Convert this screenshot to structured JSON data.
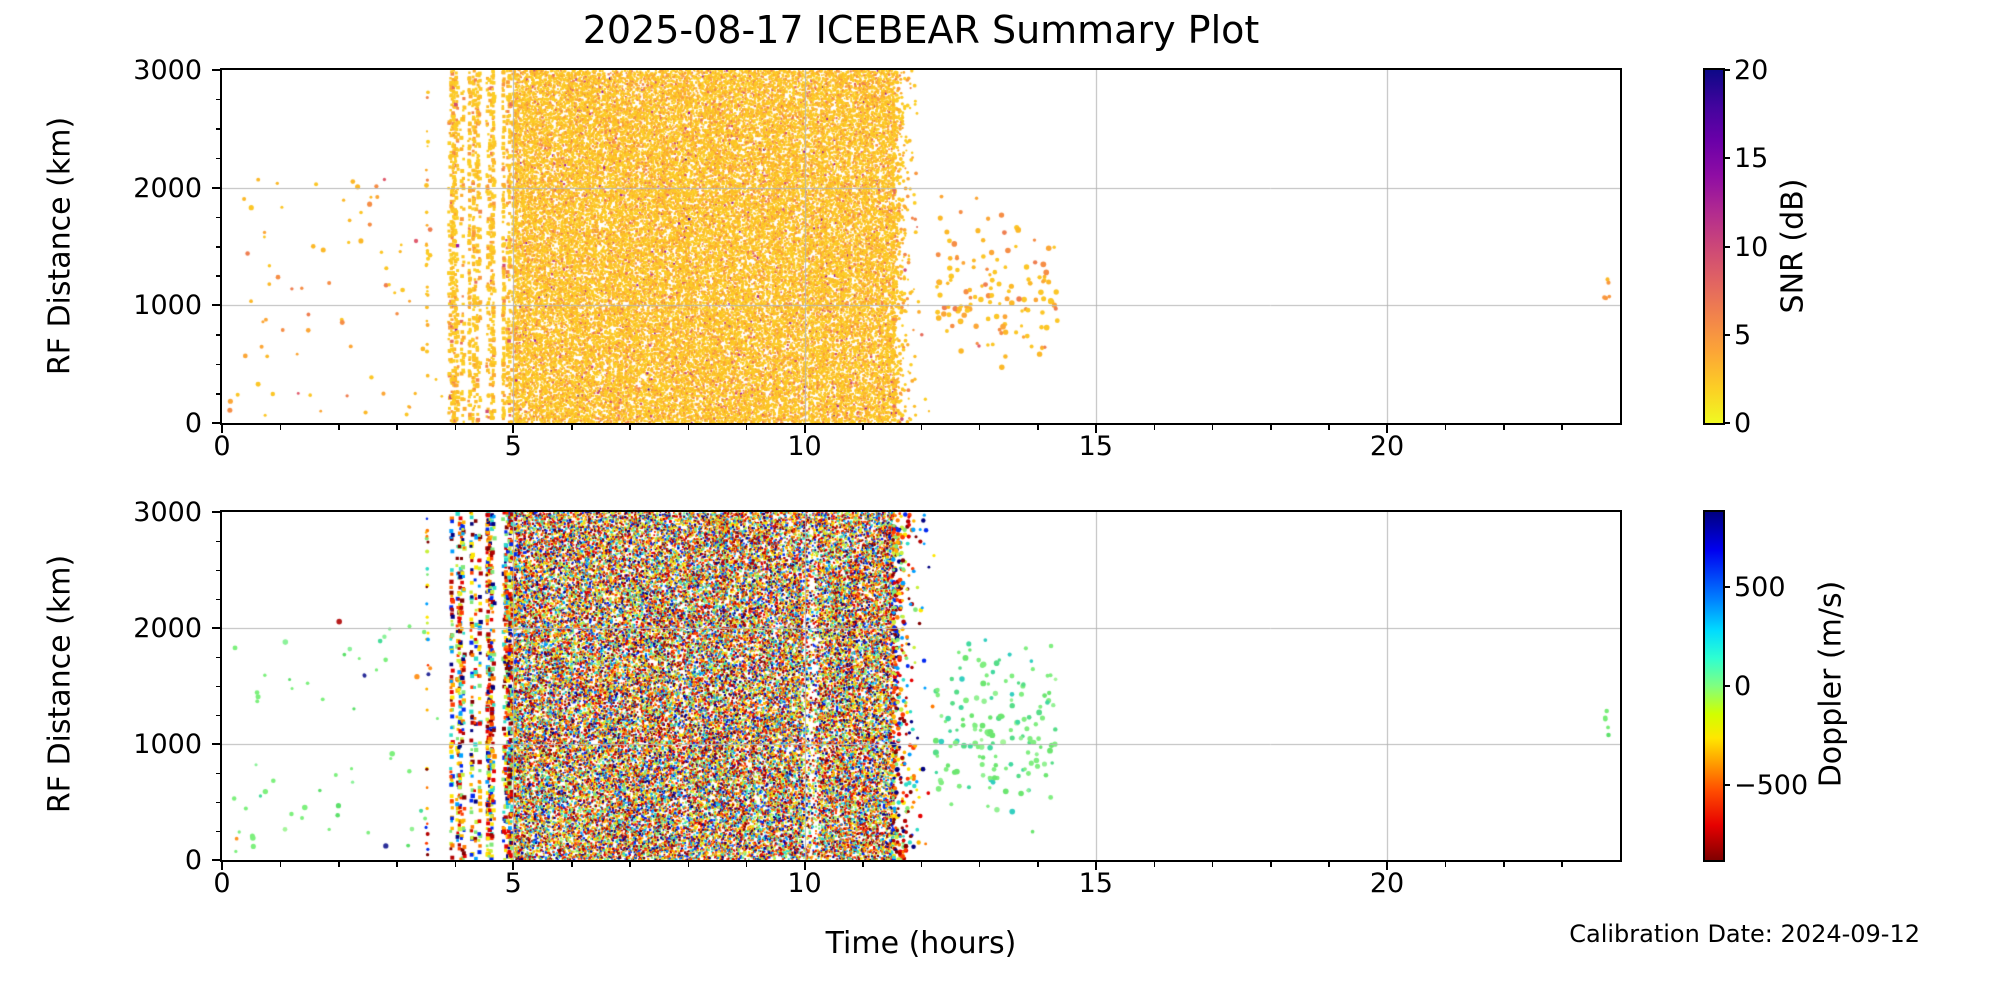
{
  "title": "2025-08-17 ICEBEAR Summary Plot",
  "xlabel": "Time (hours)",
  "calibration_note": "Calibration Date: 2024-09-12",
  "colors": {
    "background": "#ffffff",
    "grid": "#b4b4b4",
    "axis": "#000000",
    "dense_band_blend_snr": "#f6c30f",
    "dense_band_blend_doppler": "#6e5a30"
  },
  "chart_data": {
    "type": "scatter",
    "title": "2025-08-17 ICEBEAR Summary Plot",
    "xlabel": "Time (hours)",
    "x_range_hours": [
      0,
      24
    ],
    "x_ticks": [
      0,
      5,
      10,
      15,
      20
    ],
    "x_minor_tick_step": 1,
    "y_range_km": [
      0,
      3000
    ],
    "y_ticks": [
      0,
      1000,
      2000,
      3000
    ],
    "y_minor_tick_step": 250,
    "grid": true,
    "grid_on_top": true,
    "panels": [
      {
        "id": "snr",
        "ylabel": "RF Distance (km)",
        "seed": 7,
        "colorbar": {
          "label": "SNR (dB)",
          "ticks": [
            0,
            5,
            10,
            15,
            20
          ],
          "range": [
            0,
            20
          ],
          "colormap": "plasma_r",
          "gradient": [
            [
              0,
              "#f0f921"
            ],
            [
              0.1,
              "#fcce25"
            ],
            [
              0.2,
              "#fca636"
            ],
            [
              0.3,
              "#f2844b"
            ],
            [
              0.4,
              "#e16462"
            ],
            [
              0.5,
              "#cc4778"
            ],
            [
              0.6,
              "#b12a90"
            ],
            [
              0.7,
              "#8f0da4"
            ],
            [
              0.8,
              "#6a00a8"
            ],
            [
              0.9,
              "#41049d"
            ],
            [
              1,
              "#0d0887"
            ]
          ]
        },
        "palettes": {
          "band": [
            [
              "#fcce25",
              30
            ],
            [
              "#fcc626",
              30
            ],
            [
              "#fcbd27",
              16
            ],
            [
              "#fcab2c",
              10
            ],
            [
              "#f9973f",
              7
            ],
            [
              "#f2844b",
              4
            ],
            [
              "#e66c5c",
              2
            ],
            [
              "#d14e72",
              0.7
            ],
            [
              "#9c179e",
              0.25
            ],
            [
              "#46039f",
              0.05
            ]
          ],
          "sparse": [
            [
              "#fcc626",
              45
            ],
            [
              "#fcb827",
              20
            ],
            [
              "#fca636",
              18
            ],
            [
              "#f68d45",
              10
            ],
            [
              "#ef7e50",
              5
            ],
            [
              "#e05b6d",
              2
            ]
          ],
          "cluster": [
            [
              "#fcc626",
              40
            ],
            [
              "#fcb827",
              22
            ],
            [
              "#fca636",
              18
            ],
            [
              "#f68d45",
              12
            ],
            [
              "#ef7e50",
              6
            ],
            [
              "#e05b6d",
              2
            ]
          ],
          "edge": [
            [
              "#fcb827",
              60
            ],
            [
              "#f9973f",
              40
            ]
          ]
        },
        "regions": [
          {
            "kind": "sparse",
            "palette": "sparse",
            "t": [
              0.1,
              3.85
            ],
            "y_km": [
              60,
              2080
            ],
            "count": 72,
            "r": [
              1.3,
              2.6
            ]
          },
          {
            "kind": "row",
            "palette": "sparse",
            "t": [
              0.25,
              4.95
            ],
            "y_km": 250,
            "step_hours": 0.62,
            "jitter_km": 20
          },
          {
            "kind": "column",
            "palette": "band",
            "t": 3.52,
            "count": 26
          },
          {
            "kind": "stripes",
            "palette": "band",
            "t": [
              3.88,
              5.02
            ],
            "active_prob_start": 0.5,
            "active_prob_end": 0.95,
            "dots_per_col": [
              25,
              130
            ],
            "size": [
              2.2,
              4.0
            ],
            "gaps": [
              [
                4.13,
                4.19
              ],
              [
                4.4,
                4.52
              ],
              [
                4.66,
                4.78
              ]
            ]
          },
          {
            "kind": "dense",
            "palette": "band",
            "t": [
              5.02,
              11.52
            ],
            "dots_per_col": [
              100,
              150
            ],
            "size": [
              1.5,
              2.6
            ]
          },
          {
            "kind": "fringe",
            "palette": "band",
            "t": [
              11.52,
              12.3
            ],
            "count": 500,
            "decay": 9,
            "r": [
              1.0,
              2.0
            ]
          },
          {
            "kind": "cluster",
            "palette": "cluster",
            "t": [
              12.25,
              14.35
            ],
            "y_km": [
              170,
              2060
            ],
            "y_center": 1150,
            "y_sd": 560,
            "count": 135,
            "r": [
              1.6,
              2.9
            ]
          },
          {
            "kind": "sparse",
            "palette": "edge",
            "t": [
              23.72,
              23.97
            ],
            "y_km": [
              1040,
              1330
            ],
            "count": 5,
            "r": [
              1.6,
              2.4
            ]
          }
        ]
      },
      {
        "id": "doppler",
        "ylabel": "RF Distance (km)",
        "seed": 13,
        "colorbar": {
          "label": "Doppler (m/s)",
          "ticks": [
            -500,
            0,
            500
          ],
          "range": [
            -880,
            880
          ],
          "colormap": "jet_r",
          "gradient": [
            [
              0,
              "#800000"
            ],
            [
              0.1,
              "#e60000"
            ],
            [
              0.2,
              "#ff4d00"
            ],
            [
              0.3,
              "#ffb300"
            ],
            [
              0.35,
              "#ffe600"
            ],
            [
              0.42,
              "#d1ff00"
            ],
            [
              0.5,
              "#80ff80"
            ],
            [
              0.58,
              "#2effd1"
            ],
            [
              0.66,
              "#00dbff"
            ],
            [
              0.75,
              "#0080ff"
            ],
            [
              0.89,
              "#0000f0"
            ],
            [
              1,
              "#000080"
            ]
          ]
        },
        "palettes": {
          "band": [
            [
              "#800000",
              8
            ],
            [
              "#b40000",
              8
            ],
            [
              "#e60000",
              8
            ],
            [
              "#ff3c00",
              8
            ],
            [
              "#ff7a00",
              8
            ],
            [
              "#ffb300",
              8
            ],
            [
              "#ffe600",
              8
            ],
            [
              "#c8f03c",
              8
            ],
            [
              "#80e878",
              8
            ],
            [
              "#2edcc8",
              7
            ],
            [
              "#00a0ff",
              7
            ],
            [
              "#0028f0",
              7
            ],
            [
              "#000080",
              7
            ]
          ],
          "sparse": [
            [
              "#7df07d",
              55
            ],
            [
              "#5ce06a",
              12
            ],
            [
              "#46dd9a",
              6
            ],
            [
              "#8cf29a",
              8
            ],
            [
              "#2a2e99",
              6
            ],
            [
              "#ff9421",
              5
            ],
            [
              "#b71c1c",
              4
            ],
            [
              "#ffd21e",
              4
            ]
          ],
          "cluster": [
            [
              "#80ee80",
              40
            ],
            [
              "#6ce670",
              20
            ],
            [
              "#55dd88",
              12
            ],
            [
              "#93f193",
              10
            ],
            [
              "#41d9a0",
              8
            ],
            [
              "#33cfc0",
              5
            ],
            [
              "#a5f59b",
              5
            ]
          ],
          "edge": [
            [
              "#77ed77",
              70
            ],
            [
              "#5ce06a",
              30
            ]
          ]
        },
        "regions": [
          {
            "kind": "sparse",
            "palette": "sparse",
            "t": [
              0.1,
              3.85
            ],
            "y_km": [
              60,
              2080
            ],
            "count": 55,
            "r": [
              1.5,
              2.8
            ]
          },
          {
            "kind": "row",
            "palette": "cluster",
            "t": [
              0.3,
              3.7
            ],
            "y_km": 250,
            "step_hours": 0.75,
            "jitter_km": 20
          },
          {
            "kind": "column",
            "palette": "band",
            "t": 3.52,
            "count": 30
          },
          {
            "kind": "stripes",
            "palette": "band",
            "t": [
              3.88,
              5.02
            ],
            "active_prob_start": 0.5,
            "active_prob_end": 0.95,
            "dots_per_col": [
              25,
              120
            ],
            "size": [
              2.6,
              4.4
            ],
            "gaps": [
              [
                4.13,
                4.19
              ],
              [
                4.4,
                4.52
              ],
              [
                4.66,
                4.78
              ]
            ]
          },
          {
            "kind": "dense",
            "palette": "band",
            "t": [
              5.02,
              11.52
            ],
            "dots_per_col": [
              95,
              140
            ],
            "size": [
              1.5,
              2.5
            ],
            "light_cols": [
              [
                10.02,
                10.22
              ]
            ],
            "light_factor": 0.5
          },
          {
            "kind": "fringe",
            "palette": "band",
            "t": [
              11.52,
              12.3
            ],
            "count": 420,
            "decay": 7,
            "r": [
              1.4,
              2.4
            ]
          },
          {
            "kind": "cluster",
            "palette": "cluster",
            "t": [
              12.25,
              14.35
            ],
            "y_km": [
              170,
              2060
            ],
            "y_center": 1150,
            "y_sd": 560,
            "count": 160,
            "r": [
              1.7,
              3.0
            ]
          },
          {
            "kind": "sparse",
            "palette": "edge",
            "t": [
              23.72,
              23.97
            ],
            "y_km": [
              1040,
              1330
            ],
            "count": 5,
            "r": [
              1.7,
              2.5
            ]
          }
        ]
      }
    ]
  }
}
